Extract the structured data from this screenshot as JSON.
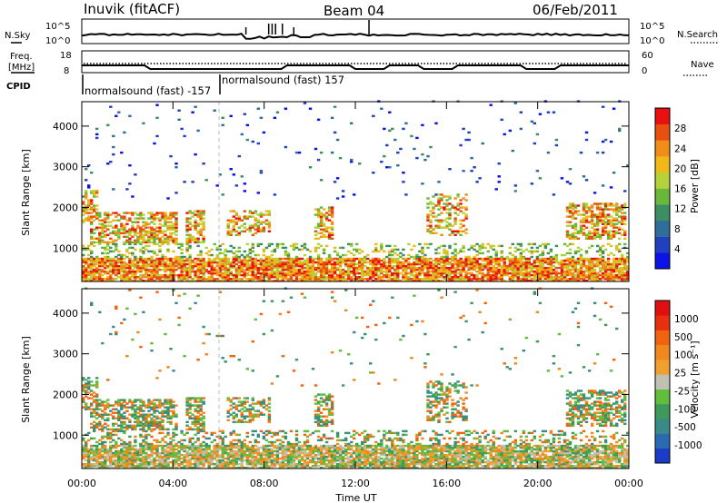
{
  "header": {
    "station": "Inuvik (fitACF)",
    "beam": "Beam 04",
    "date": "06/Feb/2011"
  },
  "panels": {
    "nsky_label": "N.Sky",
    "nsearch_label": "N.Search",
    "nsky_ticks": [
      "10^5",
      "10^0"
    ],
    "nsearch_ticks": [
      "10^5",
      "10^0"
    ],
    "freq_label_1": "Freq.",
    "freq_label_2": "[MHz]",
    "freq_ticks": [
      "18",
      "8"
    ],
    "nave_label": "Nave",
    "nave_ticks": [
      "60",
      "0"
    ],
    "cpid_label": "CPID",
    "cpid_entries": [
      {
        "text": "normalsound (fast) -157",
        "start": "00:00"
      },
      {
        "text": "normalsound (fast) 157",
        "start": "06:00"
      }
    ]
  },
  "chart_data": [
    {
      "type": "heatmap",
      "quantity": "power",
      "ylabel": "Slant Range [km]",
      "ylim": [
        180,
        4600
      ],
      "yticks": [
        "1000",
        "2000",
        "3000",
        "4000"
      ],
      "x": [
        "00:00",
        "04:00",
        "08:00",
        "12:00",
        "16:00",
        "20:00",
        "00:00"
      ],
      "colorbar": {
        "label": "Power [dB]",
        "ticks": [
          "4",
          "8",
          "12",
          "16",
          "20",
          "24",
          "28"
        ],
        "colors": [
          "#0a12e8",
          "#2040c0",
          "#2f6e9a",
          "#3d8e62",
          "#68b83a",
          "#b6d23a",
          "#f0b818",
          "#f08c18",
          "#e85010",
          "#e81010"
        ]
      }
    },
    {
      "type": "heatmap",
      "quantity": "velocity",
      "ylabel": "Slant Range [km]",
      "ylim": [
        180,
        4600
      ],
      "yticks": [
        "1000",
        "2000",
        "3000",
        "4000"
      ],
      "x": [
        "00:00",
        "04:00",
        "08:00",
        "12:00",
        "16:00",
        "20:00",
        "00:00"
      ],
      "xlabel": "Time UT",
      "colorbar": {
        "label": "Velocity [m s⁻¹]",
        "ticks": [
          "1000",
          "500",
          "100",
          "25",
          "-25",
          "-100",
          "-500",
          "-1000"
        ],
        "colors": [
          "#1a3cc8",
          "#2a6ab0",
          "#3a8a8a",
          "#3e9a5a",
          "#62bc3e",
          "#c0c0b4",
          "#f0a030",
          "#f08820",
          "#f06410",
          "#e83010",
          "#e01010"
        ]
      }
    }
  ]
}
